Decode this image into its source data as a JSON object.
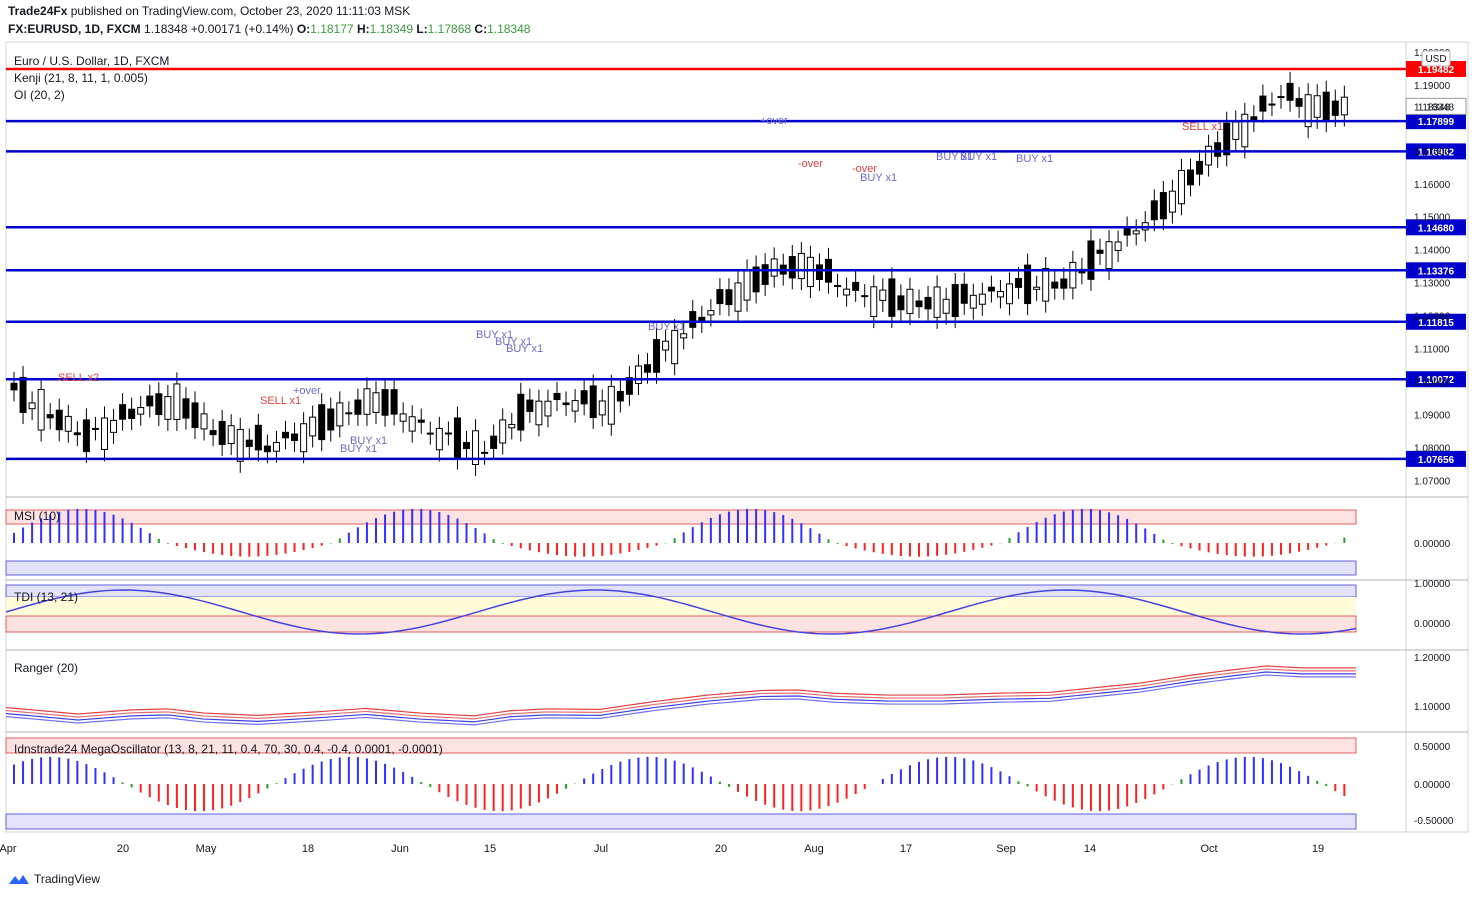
{
  "header": {
    "publisher": "Trade24Fx",
    "published_text": "published on TradingView.com, October 23, 2020 11:11:03 MSK",
    "symbol": "FX:EURUSD, 1D, FXCM",
    "last": "1.18348",
    "change": "+0.00171 (+0.14%)",
    "o_label": "O:",
    "o": "1.18177",
    "h_label": "H:",
    "h": "1.18349",
    "l_label": "L:",
    "l": "1.17868",
    "c_label": "C:",
    "c": "1.18348"
  },
  "legend": {
    "title": "Euro / U.S. Dollar, 1D, FXCM",
    "kenji": "Kenji (21, 8, 11, 1, 0.005)",
    "oi": "OI (20, 2)"
  },
  "currency_label": "USD",
  "footer": {
    "brand": "TradingView"
  },
  "chart_data": [
    {
      "type": "candlestick",
      "pane": "price",
      "x_ticks": [
        "Apr",
        "20",
        "May",
        "18",
        "Jun",
        "15",
        "Jul",
        "20",
        "Aug",
        "17",
        "Sep",
        "14",
        "Oct",
        "19"
      ],
      "y_ticks": [
        "1.20000",
        "1.19000",
        "1.18348",
        "1.17000",
        "1.16000",
        "1.15000",
        "1.14000",
        "1.13000",
        "1.12000",
        "1.11000",
        "1.10000",
        "1.09000",
        "1.08000",
        "1.07000"
      ],
      "ylim": [
        1.065,
        1.203
      ],
      "last_price": 1.18348,
      "horizontal_levels": [
        {
          "value": 1.19482,
          "label": "1.19482",
          "color": "#ff0000"
        },
        {
          "value": 1.17899,
          "label": "1.17899",
          "color": "#0000cc"
        },
        {
          "value": 1.16982,
          "label": "1.16982",
          "color": "#0000cc"
        },
        {
          "value": 1.1468,
          "label": "1.14680",
          "color": "#0000cc"
        },
        {
          "value": 1.13376,
          "label": "1.13376",
          "color": "#0000cc"
        },
        {
          "value": 1.11815,
          "label": "1.11815",
          "color": "#0000cc"
        },
        {
          "value": 1.10072,
          "label": "1.10072",
          "color": "#0000cc"
        },
        {
          "value": 1.07656,
          "label": "1.07656",
          "color": "#0000cc"
        }
      ],
      "annotations": [
        {
          "text": "SELL x2",
          "color": "#e04040"
        },
        {
          "text": "SELL x1",
          "color": "#e04040"
        },
        {
          "text": "+over",
          "color": "#6a6ad0"
        },
        {
          "text": "BUY x1",
          "color": "#6a6ad0"
        },
        {
          "text": "BUY x1",
          "color": "#6a6ad0"
        },
        {
          "text": "BUY x1",
          "color": "#6a6ad0"
        },
        {
          "text": "BUY x1",
          "color": "#6a6ad0"
        },
        {
          "text": "BUY x1",
          "color": "#6a6ad0"
        },
        {
          "text": "BUY x1",
          "color": "#6a6ad0"
        },
        {
          "text": "+over",
          "color": "#6a6ad0"
        },
        {
          "text": "-over",
          "color": "#e04040"
        },
        {
          "text": "-over",
          "color": "#e04040"
        },
        {
          "text": "BUY x1",
          "color": "#6a6ad0"
        },
        {
          "text": "BUY x1",
          "color": "#6a6ad0"
        },
        {
          "text": "BUY x1",
          "color": "#6a6ad0"
        },
        {
          "text": "BUY x1",
          "color": "#6a6ad0"
        },
        {
          "text": "SELL x1",
          "color": "#e04040"
        }
      ]
    },
    {
      "type": "bar",
      "pane": "msi",
      "title": "MSI (10)",
      "y_ticks": [
        "0.00000"
      ]
    },
    {
      "type": "line",
      "pane": "tdi",
      "title": "TDI (13, 21)",
      "y_ticks": [
        "1.00000",
        "0.00000"
      ]
    },
    {
      "type": "line",
      "pane": "ranger",
      "title": "Ranger (20)",
      "y_ticks": [
        "1.20000",
        "1.10000"
      ]
    },
    {
      "type": "bar",
      "pane": "mega",
      "title": "Idnstrade24 MegaOscillator (13, 8, 21, 11, 0.4, 70, 30, 0.4, -0.4, 0.0001, -0.0001)",
      "y_ticks": [
        "0.50000",
        "0.00000",
        "-0.50000"
      ]
    }
  ],
  "colors": {
    "up_candle": "#ffffff",
    "down_candle": "#000000",
    "level_red": "#ff0000",
    "level_blue": "#0000cc",
    "bar_blue": "#3030ff",
    "bar_red": "#ff2020",
    "bar_green": "#2a9d2a",
    "band_pink": "#fde2e2",
    "band_blue": "#e2e2fd",
    "band_yellow": "#fffbd8"
  }
}
